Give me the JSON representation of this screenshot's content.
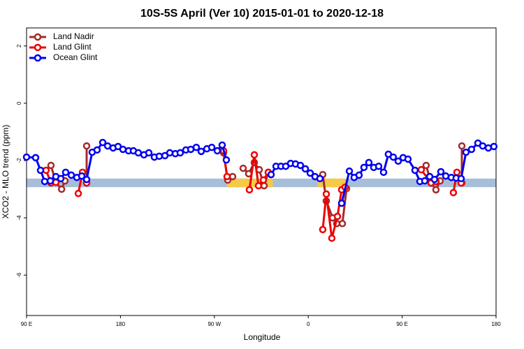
{
  "chart_data": {
    "type": "line",
    "title": "10S-5S April (Ver 10)   2015-01-01 to 2020-12-18",
    "x_label": "Longitude",
    "y_label": "XCO2 - MLO trend (ppm)",
    "xlim": [
      90,
      540
    ],
    "xticks": [
      {
        "value": 90,
        "label": "90 E"
      },
      180,
      {
        "value": 270,
        "label": "90 W"
      },
      {
        "value": 360,
        "label": "0"
      },
      {
        "value": 450,
        "label": "90 E"
      },
      {
        "value": 540,
        "label": "180"
      }
    ],
    "ylim": [
      -7.41,
      2.63
    ],
    "yticks": [
      -6,
      -4,
      -2,
      0,
      2
    ],
    "legend": "top-left",
    "band": {
      "y": [
        -2.93,
        -2.63
      ],
      "color": "#a7bedb"
    },
    "highlights": {
      "x": [
        [
          282,
          326
        ],
        [
          369,
          396
        ]
      ],
      "color": "#f7c948"
    },
    "series": [
      {
        "name": "Land Nadir",
        "color": "#a52a2a",
        "x": [
          113.4,
          118.1,
          123.6,
          126.8,
          null,
          147.6,
          147.6,
          null,
          278.8,
          282.8,
          287.5,
          null,
          297.6,
          302.9,
          308.3,
          313.0,
          317.7,
          321.7,
          null,
          373.9,
          377.3,
          383.3,
          387.3,
          392.7,
          396.7,
          null,
          473.0,
          477.7,
          482.4,
          486.4,
          null,
          507.2,
          507.2
        ],
        "values": [
          -2.17,
          -2.76,
          -3.0,
          -2.71,
          null,
          -1.49,
          -2.78,
          null,
          -1.73,
          -2.68,
          -2.56,
          null,
          -2.27,
          -2.46,
          -2.07,
          -2.32,
          -2.88,
          -2.41,
          null,
          -2.49,
          -3.41,
          -4.0,
          -4.2,
          -4.2,
          -2.98,
          null,
          -2.17,
          -2.78,
          -3.02,
          -2.71,
          null,
          -1.49,
          -2.78
        ]
      },
      {
        "name": "Land Glint",
        "color": "#ee0000",
        "x": [
          108.7,
          113.4,
          118.1,
          null,
          139.6,
          143.6,
          147.6,
          null,
          278.8,
          282.2,
          null,
          303.6,
          308.3,
          312.3,
          317.0,
          321.7,
          null,
          373.9,
          377.3,
          382.6,
          388.0,
          392.0,
          395.3,
          null,
          468.3,
          477.7,
          482.4,
          null,
          499.1,
          502.5,
          506.5
        ],
        "values": [
          -2.34,
          -2.78,
          -2.76,
          null,
          -3.15,
          -2.41,
          -2.78,
          null,
          -1.66,
          -2.56,
          null,
          -3.02,
          -1.8,
          -2.88,
          -2.68,
          -2.41,
          null,
          -4.41,
          -3.17,
          -4.71,
          -3.95,
          -3.02,
          -2.93,
          null,
          -2.32,
          -2.78,
          -2.73,
          null,
          -3.12,
          -2.41,
          -2.78
        ]
      },
      {
        "name": "Ocean Glint",
        "color": "#0000ee",
        "x": [
          90.0,
          98.7,
          103.4,
          107.4,
          112.8,
          118.1,
          122.8,
          127.5,
          132.9,
          138.2,
          142.9,
          147.6,
          152.9,
          157.6,
          163.0,
          167.7,
          173.0,
          177.7,
          182.4,
          187.8,
          192.4,
          197.1,
          202.5,
          207.2,
          212.5,
          217.2,
          222.6,
          227.3,
          232.6,
          237.3,
          242.7,
          247.4,
          252.7,
          257.4,
          262.8,
          267.5,
          272.8,
          277.5,
          281.5,
          null,
          324.4,
          329.1,
          333.8,
          338.4,
          343.1,
          347.8,
          352.5,
          357.2,
          361.9,
          366.5,
          371.2,
          null,
          392.0,
          399.4,
          404.0,
          408.7,
          413.4,
          418.1,
          422.8,
          427.5,
          432.2,
          436.8,
          441.5,
          446.2,
          450.9,
          455.6,
          462.3,
          467.0,
          471.7,
          476.4,
          481.0,
          487.1,
          491.8,
          497.1,
          501.8,
          506.5,
          511.2,
          516.5,
          522.6,
          527.2,
          532.6,
          537.9
        ],
        "values": [
          -1.88,
          -1.9,
          -2.34,
          -2.73,
          -2.71,
          -2.56,
          -2.63,
          -2.41,
          -2.51,
          -2.59,
          -2.54,
          -2.66,
          -1.71,
          -1.63,
          -1.37,
          -1.49,
          -1.56,
          -1.51,
          -1.61,
          -1.66,
          -1.66,
          -1.73,
          -1.8,
          -1.73,
          -1.88,
          -1.85,
          -1.83,
          -1.73,
          -1.76,
          -1.73,
          -1.63,
          -1.61,
          -1.54,
          -1.68,
          -1.59,
          -1.54,
          -1.66,
          -1.46,
          -1.98,
          null,
          -2.49,
          -2.2,
          -2.2,
          -2.2,
          -2.1,
          -2.12,
          -2.17,
          -2.29,
          -2.44,
          -2.56,
          -2.63,
          null,
          -3.49,
          -2.37,
          -2.59,
          -2.51,
          -2.24,
          -2.07,
          -2.24,
          -2.2,
          -2.41,
          -1.78,
          -1.88,
          -2.02,
          -1.9,
          -1.95,
          -2.34,
          -2.73,
          -2.71,
          -2.56,
          -2.66,
          -2.39,
          -2.54,
          -2.59,
          -2.61,
          -2.63,
          -1.71,
          -1.61,
          -1.39,
          -1.49,
          -1.56,
          -1.51
        ]
      }
    ]
  }
}
